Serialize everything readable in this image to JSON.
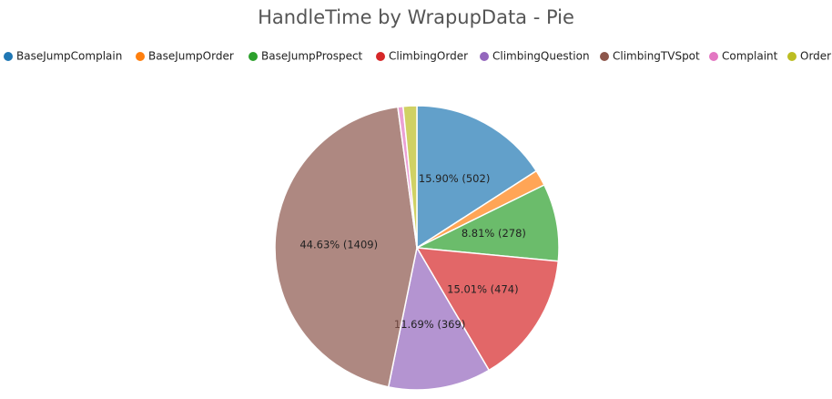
{
  "chart_data": {
    "type": "pie",
    "title": "HandleTime by WrapupData - Pie",
    "categories": [
      "BaseJumpComplain",
      "BaseJumpOrder",
      "BaseJumpProspect",
      "ClimbingOrder",
      "ClimbingQuestion",
      "ClimbingTVSpot",
      "Complaint",
      "Order"
    ],
    "values": [
      502,
      57,
      278,
      474,
      369,
      1409,
      19,
      49
    ],
    "value_labels": [
      "15.90% (502)",
      null,
      "8.81% (278)",
      "15.01% (474)",
      "11.69% (369)",
      "44.63% (1409)",
      null,
      null
    ],
    "colors": [
      "#1f77b4",
      "#ff7f0e",
      "#2ca02c",
      "#d62728",
      "#9467bd",
      "#8c564b",
      "#e377c2",
      "#bcbd22"
    ]
  }
}
